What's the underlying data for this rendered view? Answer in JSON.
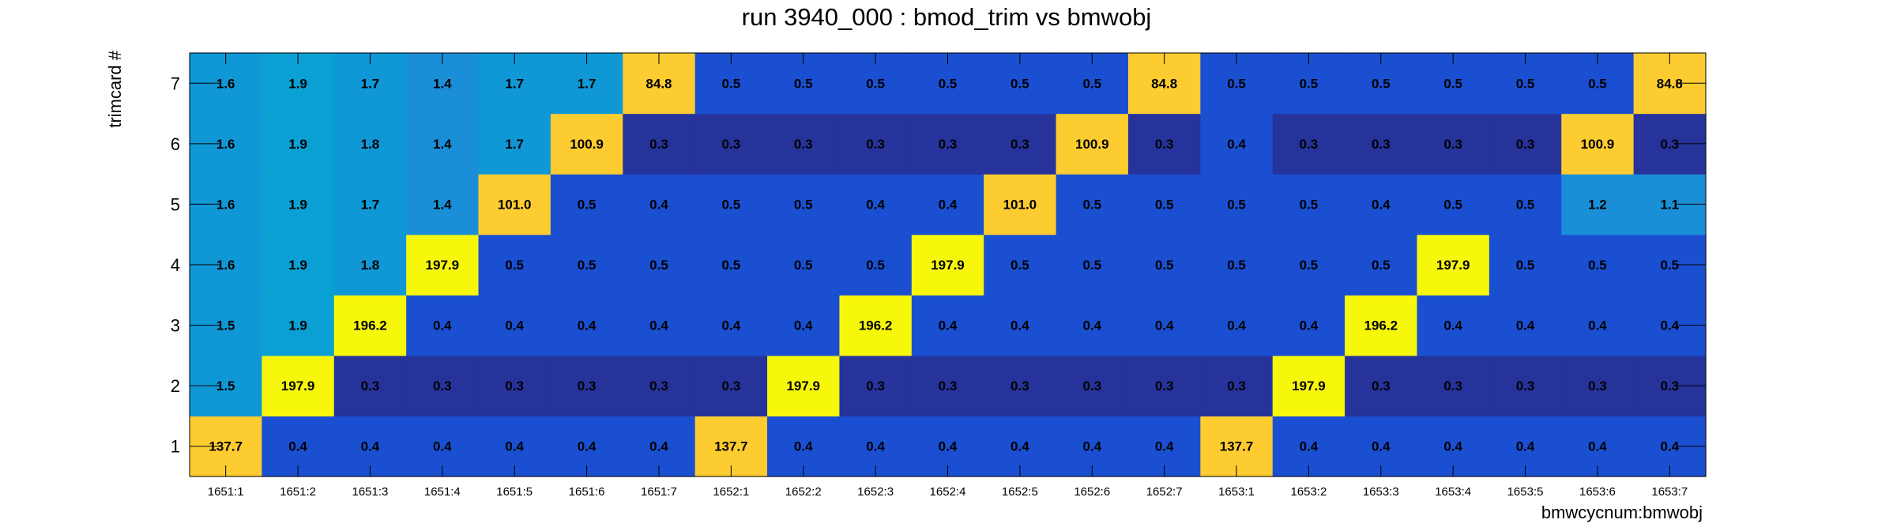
{
  "chart_data": {
    "type": "heatmap",
    "title": "run 3940_000 : bmod_trim vs bmwobj",
    "xlabel": "bmwcycnum:bmwobj",
    "ylabel": "trimcard #",
    "x_categories": [
      "1651:1",
      "1651:2",
      "1651:3",
      "1651:4",
      "1651:5",
      "1651:6",
      "1651:7",
      "1652:1",
      "1652:2",
      "1652:3",
      "1652:4",
      "1652:5",
      "1652:6",
      "1652:7",
      "1653:1",
      "1653:2",
      "1653:3",
      "1653:4",
      "1653:5",
      "1653:6",
      "1653:7"
    ],
    "y_categories": [
      "1",
      "2",
      "3",
      "4",
      "5",
      "6",
      "7"
    ],
    "values": [
      [
        137.7,
        0.4,
        0.4,
        0.4,
        0.4,
        0.4,
        0.4,
        137.7,
        0.4,
        0.4,
        0.4,
        0.4,
        0.4,
        0.4,
        137.7,
        0.4,
        0.4,
        0.4,
        0.4,
        0.4,
        0.4
      ],
      [
        1.5,
        197.9,
        0.3,
        0.3,
        0.3,
        0.3,
        0.3,
        0.3,
        197.9,
        0.3,
        0.3,
        0.3,
        0.3,
        0.3,
        0.3,
        197.9,
        0.3,
        0.3,
        0.3,
        0.3,
        0.3
      ],
      [
        1.5,
        1.9,
        196.2,
        0.4,
        0.4,
        0.4,
        0.4,
        0.4,
        0.4,
        196.2,
        0.4,
        0.4,
        0.4,
        0.4,
        0.4,
        0.4,
        196.2,
        0.4,
        0.4,
        0.4,
        0.4
      ],
      [
        1.6,
        1.9,
        1.8,
        197.9,
        0.5,
        0.5,
        0.5,
        0.5,
        0.5,
        0.5,
        197.9,
        0.5,
        0.5,
        0.5,
        0.5,
        0.5,
        0.5,
        197.9,
        0.5,
        0.5,
        0.5
      ],
      [
        1.6,
        1.9,
        1.7,
        1.4,
        101.0,
        0.5,
        0.4,
        0.5,
        0.5,
        0.4,
        0.4,
        101.0,
        0.5,
        0.5,
        0.5,
        0.5,
        0.4,
        0.5,
        0.5,
        1.2,
        1.1
      ],
      [
        1.6,
        1.9,
        1.8,
        1.4,
        1.7,
        100.9,
        0.3,
        0.3,
        0.3,
        0.3,
        0.3,
        0.3,
        100.9,
        0.3,
        0.4,
        0.3,
        0.3,
        0.3,
        0.3,
        100.9,
        0.3
      ],
      [
        1.6,
        1.9,
        1.7,
        1.4,
        1.7,
        1.7,
        84.8,
        0.5,
        0.5,
        0.5,
        0.5,
        0.5,
        0.5,
        84.8,
        0.5,
        0.5,
        0.5,
        0.5,
        0.5,
        0.5,
        84.8
      ]
    ],
    "value_format": "one decimal place",
    "palette": {
      "very_low": "#26339b",
      "low": "#1b4fd1",
      "mid_low": "#1a8ed6",
      "mid": "#0aa0d3",
      "high_low": "#fdcc30",
      "high": "#f7f70c"
    },
    "grid": false,
    "legend": "none"
  }
}
